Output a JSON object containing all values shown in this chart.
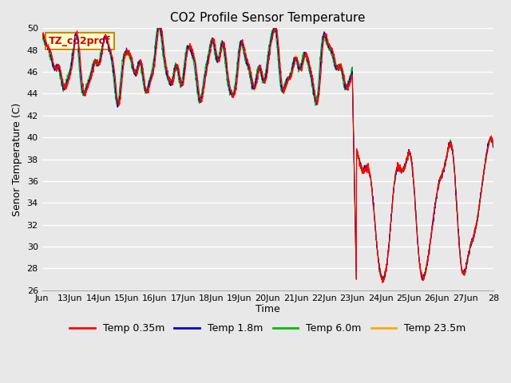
{
  "title": "CO2 Profile Sensor Temperature",
  "ylabel": "Senor Temperature (C)",
  "xlabel": "Time",
  "ylim": [
    26,
    50
  ],
  "yticks": [
    26,
    28,
    30,
    32,
    34,
    36,
    38,
    40,
    42,
    44,
    46,
    48,
    50
  ],
  "xtick_labels": [
    "Jun",
    "13Jun",
    "14Jun",
    "15Jun",
    "16Jun",
    "17Jun",
    "18Jun",
    "19Jun",
    "20Jun",
    "21Jun",
    "22Jun",
    "23Jun",
    "24Jun",
    "25Jun",
    "26Jun",
    "27Jun",
    "28"
  ],
  "legend_labels": [
    "Temp 0.35m",
    "Temp 1.8m",
    "Temp 6.0m",
    "Temp 23.5m"
  ],
  "legend_colors": [
    "#ff0000",
    "#0000cc",
    "#00bb00",
    "#ffaa00"
  ],
  "annotation_text": "TZ_co2prof",
  "annotation_bg": "#ffffcc",
  "annotation_border": "#cc8800",
  "bg_color": "#e8e8e8",
  "grid_color": "#ffffff",
  "title_fontsize": 11,
  "label_fontsize": 9,
  "tick_fontsize": 8,
  "legend_fontsize": 9
}
